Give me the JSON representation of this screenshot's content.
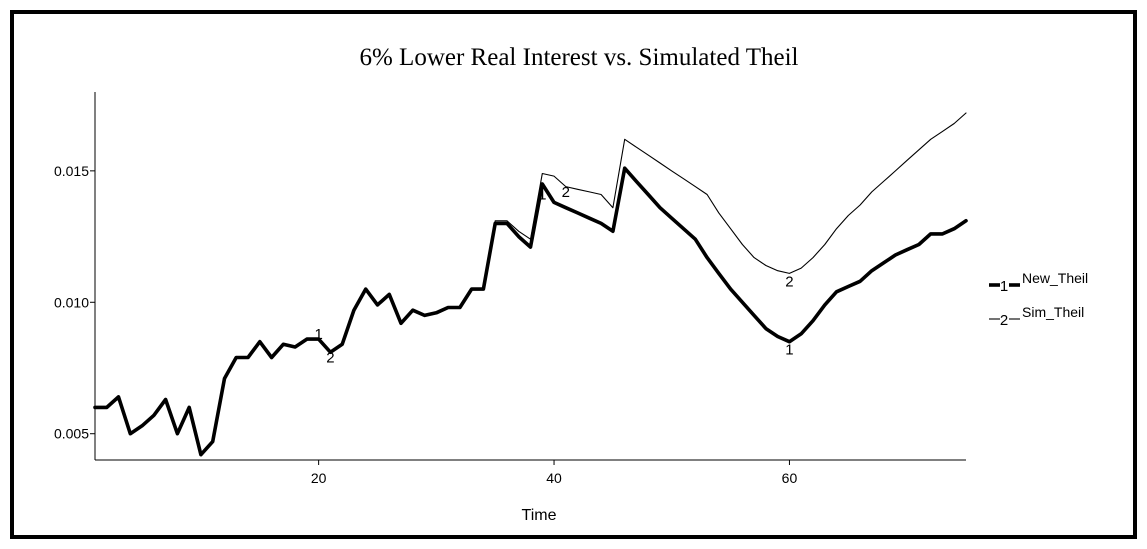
{
  "chart_data": {
    "type": "line",
    "title": "6% Lower Real Interest vs. Simulated Theil",
    "xlabel": "Time",
    "ylabel": "",
    "xlim": [
      1,
      75
    ],
    "ylim": [
      0.004,
      0.018
    ],
    "xticks": [
      20,
      40,
      60
    ],
    "xtick_labels": [
      "20",
      "40",
      "60"
    ],
    "yticks": [
      0.005,
      0.01,
      0.015
    ],
    "ytick_labels": [
      "0.005",
      "0.010",
      "0.015"
    ],
    "grid": false,
    "legend_position": "right",
    "x": [
      1,
      2,
      3,
      4,
      5,
      6,
      7,
      8,
      9,
      10,
      11,
      12,
      13,
      14,
      15,
      16,
      17,
      18,
      19,
      20,
      21,
      22,
      23,
      24,
      25,
      26,
      27,
      28,
      29,
      30,
      31,
      32,
      33,
      34,
      35,
      36,
      37,
      38,
      39,
      40,
      41,
      42,
      43,
      44,
      45,
      46,
      47,
      48,
      49,
      50,
      51,
      52,
      53,
      54,
      55,
      56,
      57,
      58,
      59,
      60,
      61,
      62,
      63,
      64,
      65,
      66,
      67,
      68,
      69,
      70,
      71,
      72,
      73,
      74,
      75
    ],
    "series": [
      {
        "name": "New_Theil",
        "marker": "1",
        "line_weight": "thick",
        "values": [
          0.006,
          0.006,
          0.0064,
          0.005,
          0.0053,
          0.0057,
          0.0063,
          0.005,
          0.006,
          0.0042,
          0.0047,
          0.0071,
          0.0079,
          0.0079,
          0.0085,
          0.0079,
          0.0084,
          0.0083,
          0.0086,
          0.0086,
          0.0081,
          0.0084,
          0.0097,
          0.0105,
          0.0099,
          0.0103,
          0.0092,
          0.0097,
          0.0095,
          0.0096,
          0.0098,
          0.0098,
          0.0105,
          0.0105,
          0.013,
          0.013,
          0.0125,
          0.0121,
          0.0145,
          0.0138,
          0.0136,
          0.0134,
          0.0132,
          0.013,
          0.0127,
          0.0151,
          0.0146,
          0.0141,
          0.0136,
          0.0132,
          0.0128,
          0.0124,
          0.0117,
          0.0111,
          0.0105,
          0.01,
          0.0095,
          0.009,
          0.0087,
          0.0085,
          0.0088,
          0.0093,
          0.0099,
          0.0104,
          0.0106,
          0.0108,
          0.0112,
          0.0115,
          0.0118,
          0.012,
          0.0122,
          0.0126,
          0.0126,
          0.0128,
          0.0131
        ],
        "marker_labels": [
          {
            "x": 20,
            "y": 0.0088
          },
          {
            "x": 39,
            "y": 0.0141
          },
          {
            "x": 60,
            "y": 0.0082
          }
        ]
      },
      {
        "name": "Sim_Theil",
        "marker": "2",
        "line_weight": "thin",
        "values": [
          0.006,
          0.006,
          0.0064,
          0.005,
          0.0053,
          0.0057,
          0.0063,
          0.005,
          0.006,
          0.0042,
          0.0047,
          0.0071,
          0.0079,
          0.0079,
          0.0085,
          0.0079,
          0.0084,
          0.0083,
          0.0086,
          0.0086,
          0.0081,
          0.0084,
          0.0097,
          0.0105,
          0.0099,
          0.0103,
          0.0092,
          0.0097,
          0.0095,
          0.0096,
          0.0098,
          0.0098,
          0.0105,
          0.0105,
          0.0131,
          0.0131,
          0.0127,
          0.0124,
          0.0149,
          0.0148,
          0.0144,
          0.0143,
          0.0142,
          0.0141,
          0.0136,
          0.0162,
          0.0159,
          0.0156,
          0.0153,
          0.015,
          0.0147,
          0.0144,
          0.0141,
          0.0134,
          0.0128,
          0.0122,
          0.0117,
          0.0114,
          0.0112,
          0.0111,
          0.0113,
          0.0117,
          0.0122,
          0.0128,
          0.0133,
          0.0137,
          0.0142,
          0.0146,
          0.015,
          0.0154,
          0.0158,
          0.0162,
          0.0165,
          0.0168,
          0.0172
        ],
        "marker_labels": [
          {
            "x": 21,
            "y": 0.0079
          },
          {
            "x": 41,
            "y": 0.0142
          },
          {
            "x": 60,
            "y": 0.0108
          }
        ]
      }
    ]
  }
}
